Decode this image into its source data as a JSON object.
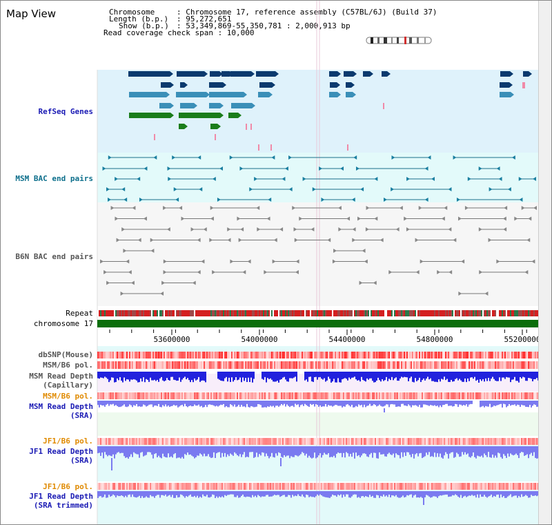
{
  "title": "Map View",
  "header": {
    "chromosome_key": "Chromosome",
    "chromosome_val": ": Chromosome 17, reference assembly (C57BL/6J) (Build 37)",
    "length_key": "Length (b.p.)",
    "length_val": ": 95,272,651",
    "show_key": "Show (b.p.)",
    "show_val": ": 53,349,869-55,350,781 : 2,000,913 bp",
    "coverage": "Read coverage check span : 10,000"
  },
  "tracks": {
    "refseq": "RefSeq Genes",
    "msm_bac": "MSM BAC end pairs",
    "b6n_bac": "B6N BAC end pairs",
    "repeat": "Repeat",
    "chromosome": "chromosome 17",
    "dbsnp": "dbSNP(Mouse)",
    "msm_b6_pol": "MSM/B6 pol.",
    "msm_read_depth_cap_1": "MSM Read Depth",
    "msm_read_depth_cap_2": "(Capillary)",
    "msm_b6_pol_2": "MSM/B6 pol.",
    "msm_read_depth_sra_1": "MSM Read Depth",
    "msm_read_depth_sra_2": "(SRA)",
    "jf1_b6_pol": "JF1/B6 pol.",
    "jf1_read_depth_1": "JF1 Read Depth",
    "jf1_read_depth_2": "(SRA)",
    "jf1_b6_pol_2": "JF1/B6 pol.",
    "jf1_trim_1": "JF1 Read Depth",
    "jf1_trim_2": "(SRA trimmed)"
  },
  "axis_ticks": [
    "53600000",
    "54000000",
    "54400000",
    "54800000",
    "55200000"
  ],
  "colors": {
    "refseq_bg": "#dff2fb",
    "msm_bac_bg": "#e3fafa",
    "b6n_bg": "#f4f4f4",
    "chromosome_green": "#0b6e0b",
    "gene_dark": "#0b3a6e",
    "gene_mid": "#3a8fb8",
    "gene_green": "#1a7d1a",
    "msm_label": "#0b6e8b",
    "sra_label": "#1a1ab4",
    "pol_label": "#e08a00",
    "depth_blue": "#2222dd",
    "depth_light": "#7a7af0"
  }
}
